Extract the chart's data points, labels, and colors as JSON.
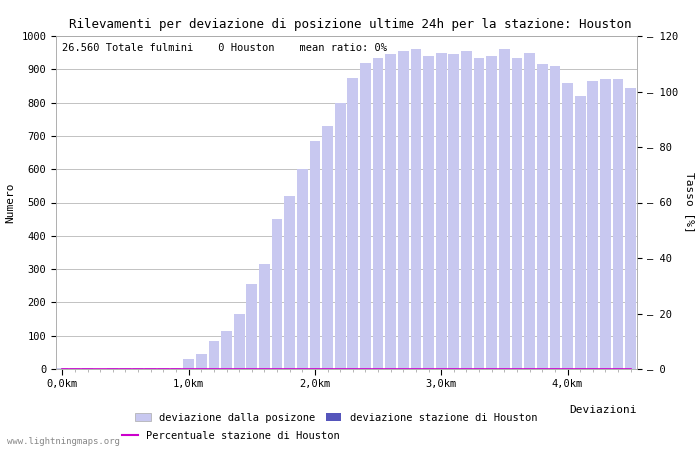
{
  "title": "Rilevamenti per deviazione di posizione ultime 24h per la stazione: Houston",
  "xlabel": "Deviazioni",
  "ylabel_left": "Numero",
  "ylabel_right": "Tasso [%]",
  "subtitle": "26.560 Totale fulmini    0 Houston    mean ratio: 0%",
  "ylim_left": [
    0,
    1000
  ],
  "ylim_right": [
    0,
    120
  ],
  "xtick_positions": [
    0,
    10,
    20,
    30,
    40
  ],
  "xtick_labels": [
    "0,0km",
    "1,0km",
    "2,0km",
    "3,0km",
    "4,0km"
  ],
  "ytick_left": [
    0,
    100,
    200,
    300,
    400,
    500,
    600,
    700,
    800,
    900,
    1000
  ],
  "ytick_right": [
    0,
    20,
    40,
    60,
    80,
    100,
    120
  ],
  "bar_values": [
    2,
    3,
    2,
    1,
    2,
    3,
    4,
    3,
    3,
    4,
    30,
    45,
    85,
    115,
    165,
    255,
    315,
    450,
    520,
    600,
    685,
    730,
    800,
    875,
    920,
    935,
    945,
    955,
    960,
    940,
    950,
    945,
    955,
    935,
    940,
    960,
    935,
    950,
    915,
    910,
    860,
    820,
    865,
    870,
    870,
    845
  ],
  "bar_color_light": "#c8c8f0",
  "bar_color_dark": "#5555bb",
  "bar_houston_values": [
    0,
    0,
    0,
    0,
    0,
    0,
    0,
    0,
    0,
    0,
    0,
    0,
    0,
    0,
    0,
    0,
    0,
    0,
    0,
    0,
    0,
    0,
    0,
    0,
    0,
    0,
    0,
    0,
    0,
    0,
    0,
    0,
    0,
    0,
    0,
    0,
    0,
    0,
    0,
    0,
    0,
    0,
    0,
    0,
    0,
    0
  ],
  "percentage_values": [
    0,
    0,
    0,
    0,
    0,
    0,
    0,
    0,
    0,
    0,
    0,
    0,
    0,
    0,
    0,
    0,
    0,
    0,
    0,
    0,
    0,
    0,
    0,
    0,
    0,
    0,
    0,
    0,
    0,
    0,
    0,
    0,
    0,
    0,
    0,
    0,
    0,
    0,
    0,
    0,
    0,
    0,
    0,
    0,
    0,
    0
  ],
  "legend_label_light": "deviazione dalla posizone",
  "legend_label_dark": "deviazione stazione di Houston",
  "legend_label_line": "Percentuale stazione di Houston",
  "line_color": "#cc00cc",
  "watermark": "www.lightningmaps.org",
  "bg_color": "#ffffff",
  "grid_color": "#aaaaaa",
  "title_fontsize": 9,
  "subtitle_fontsize": 7.5,
  "axis_fontsize": 8,
  "tick_fontsize": 7.5,
  "legend_fontsize": 7.5
}
